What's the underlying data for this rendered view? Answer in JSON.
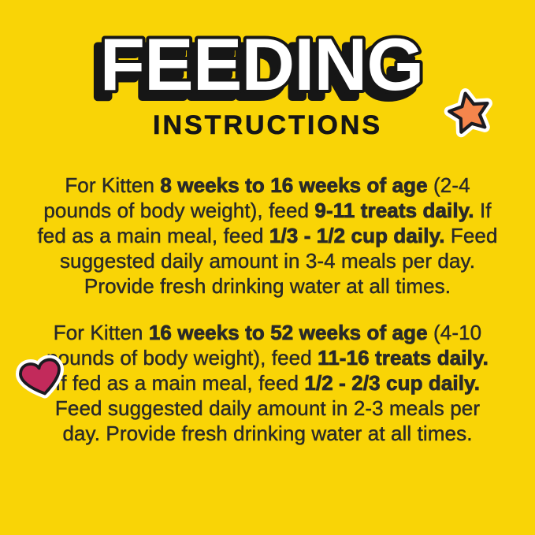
{
  "page": {
    "background_color": "#F9D406",
    "title_color": "#FFFFFF",
    "outline_color": "#161616",
    "body_text_color": "#2A2A28"
  },
  "header": {
    "title": "FEEDING",
    "subtitle": "INSTRUCTIONS"
  },
  "icons": {
    "star": {
      "label": "star-sticker",
      "fill": "#F5854C",
      "outline": "#1C1B20",
      "border": "#FFFFFF"
    },
    "heart": {
      "label": "heart-sticker",
      "fill": "#C22A5B",
      "outline": "#1C1B20",
      "border": "#FFFFFF"
    }
  },
  "instructions": {
    "paragraphs": [
      {
        "segments": [
          {
            "text": "For Kitten ",
            "bold": false
          },
          {
            "text": "8 weeks to 16 weeks of age",
            "bold": true
          },
          {
            "text": " (2-4 pounds of body weight), feed ",
            "bold": false
          },
          {
            "text": "9-11 treats daily.",
            "bold": true
          },
          {
            "text": " If fed as a main meal, feed ",
            "bold": false
          },
          {
            "text": "1/3 - 1/2 cup daily.",
            "bold": true
          },
          {
            "text": " Feed suggested daily amount in 3-4 meals per day. Provide fresh drinking water at all times.",
            "bold": false
          }
        ]
      },
      {
        "segments": [
          {
            "text": "For Kitten ",
            "bold": false
          },
          {
            "text": "16 weeks to 52 weeks of age",
            "bold": true
          },
          {
            "text": " (4-10 pounds of body weight), feed ",
            "bold": false
          },
          {
            "text": "11-16 treats daily.",
            "bold": true
          },
          {
            "text": " If fed as a main meal, feed ",
            "bold": false
          },
          {
            "text": "1/2 - 2/3 cup daily.",
            "bold": true
          },
          {
            "text": " Feed suggested daily amount in 2-3 meals per day. Provide fresh drinking water at all times.",
            "bold": false
          }
        ]
      }
    ]
  }
}
